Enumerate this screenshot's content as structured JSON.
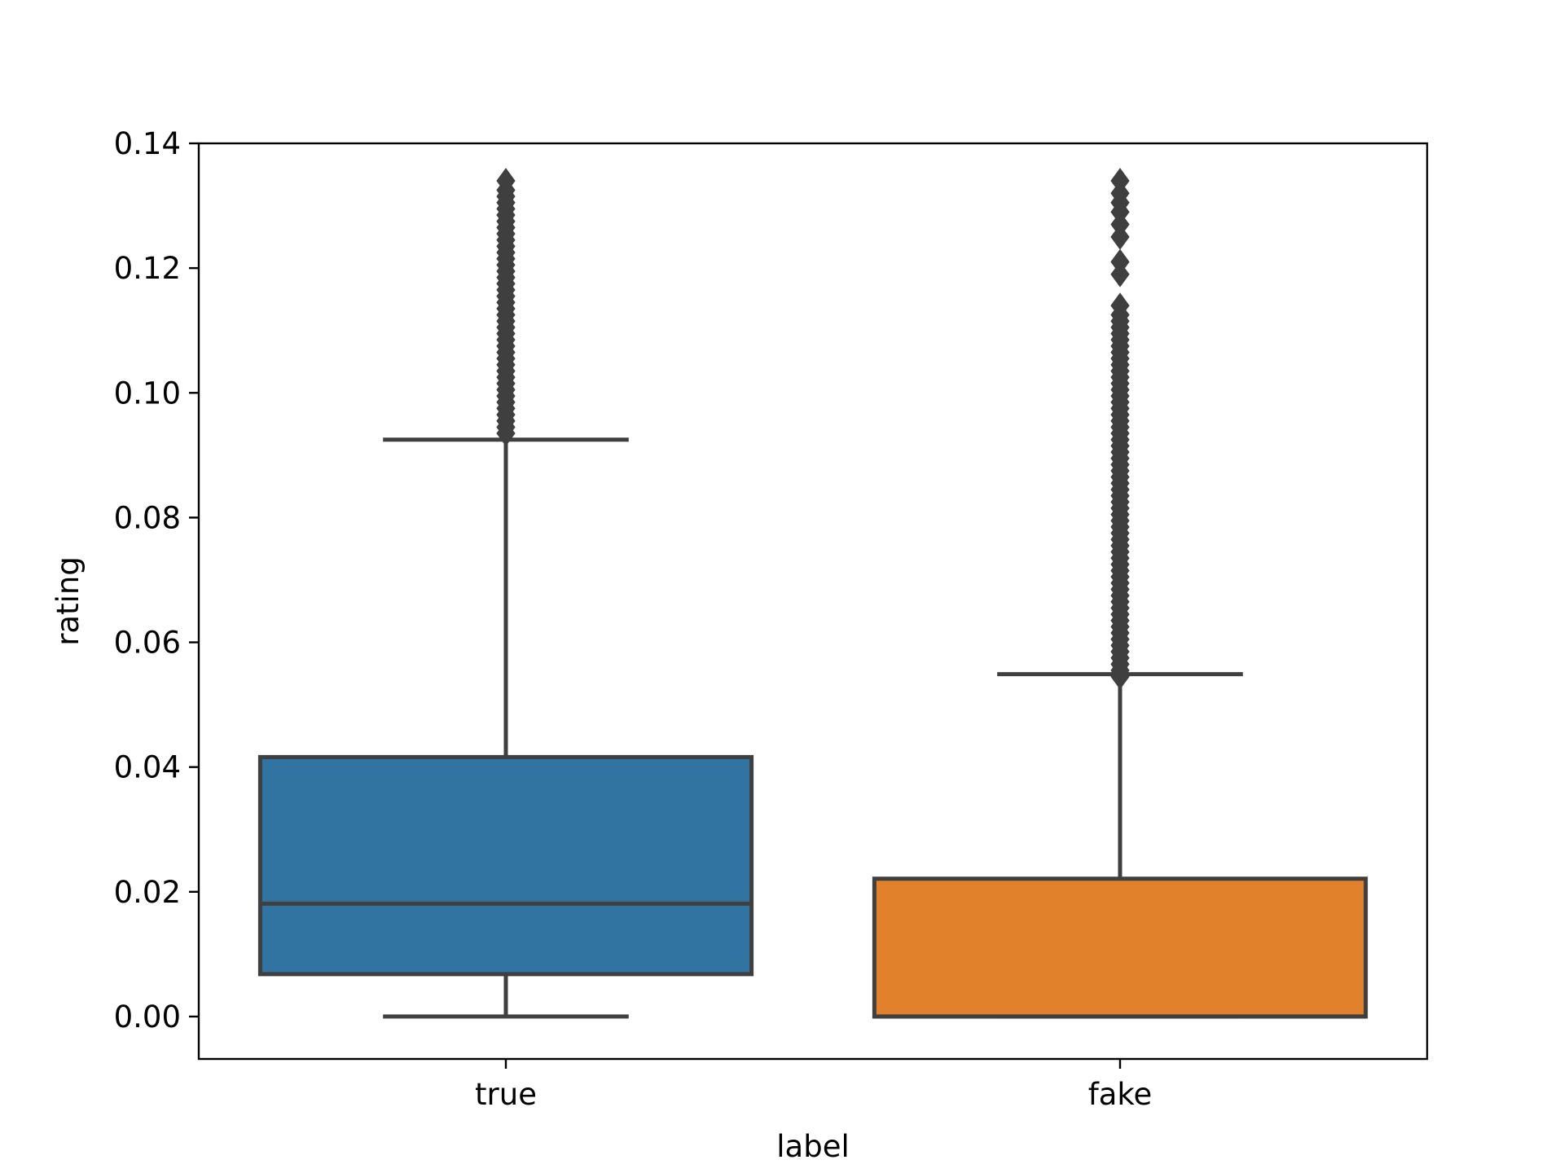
{
  "chart_data": {
    "type": "box",
    "xlabel": "label",
    "ylabel": "rating",
    "categories": [
      "true",
      "fake"
    ],
    "ylim": [
      -0.0068,
      0.14
    ],
    "yticks": [
      0.0,
      0.02,
      0.04,
      0.06,
      0.08,
      0.1,
      0.12,
      0.14
    ],
    "ytick_labels": [
      "0.00",
      "0.02",
      "0.04",
      "0.06",
      "0.08",
      "0.10",
      "0.12",
      "0.14"
    ],
    "grid": false,
    "boxes": [
      {
        "category": "true",
        "color": "#3274a1",
        "whisker_low": 0.0,
        "q1": 0.0068,
        "median": 0.0181,
        "q3": 0.0416,
        "whisker_high": 0.0925,
        "outliers_range": [
          0.0935,
          0.134
        ],
        "outliers": [
          0.0935,
          0.0945,
          0.0955,
          0.0965,
          0.0975,
          0.0985,
          0.0995,
          0.1005,
          0.1015,
          0.1025,
          0.1035,
          0.1045,
          0.1055,
          0.1065,
          0.1075,
          0.1085,
          0.1095,
          0.1105,
          0.1115,
          0.1125,
          0.1135,
          0.1145,
          0.1155,
          0.1165,
          0.1175,
          0.1185,
          0.1195,
          0.1205,
          0.1215,
          0.1225,
          0.1235,
          0.1245,
          0.1255,
          0.1265,
          0.1275,
          0.1285,
          0.1295,
          0.1305,
          0.1315,
          0.1325,
          0.134
        ]
      },
      {
        "category": "fake",
        "color": "#e1812c",
        "whisker_low": 0.0,
        "q1": 0.0,
        "median": 0.0,
        "q3": 0.0221,
        "whisker_high": 0.0549,
        "outliers_range": [
          0.0545,
          0.134
        ],
        "outliers": [
          0.0545,
          0.0555,
          0.0565,
          0.0575,
          0.0585,
          0.0595,
          0.0605,
          0.0615,
          0.0625,
          0.0635,
          0.0645,
          0.0655,
          0.0665,
          0.0675,
          0.0685,
          0.0695,
          0.0705,
          0.0715,
          0.0725,
          0.0735,
          0.0745,
          0.0755,
          0.0765,
          0.0775,
          0.0785,
          0.0795,
          0.0805,
          0.0815,
          0.0825,
          0.0835,
          0.0845,
          0.0855,
          0.0865,
          0.0875,
          0.0885,
          0.0895,
          0.0905,
          0.0915,
          0.0925,
          0.0935,
          0.0945,
          0.0955,
          0.0965,
          0.0975,
          0.0985,
          0.0995,
          0.1005,
          0.1015,
          0.1025,
          0.1035,
          0.1045,
          0.1055,
          0.1065,
          0.1075,
          0.1085,
          0.1095,
          0.1105,
          0.1115,
          0.1125,
          0.114,
          0.119,
          0.121,
          0.125,
          0.127,
          0.129,
          0.1305,
          0.132,
          0.134
        ]
      }
    ]
  }
}
